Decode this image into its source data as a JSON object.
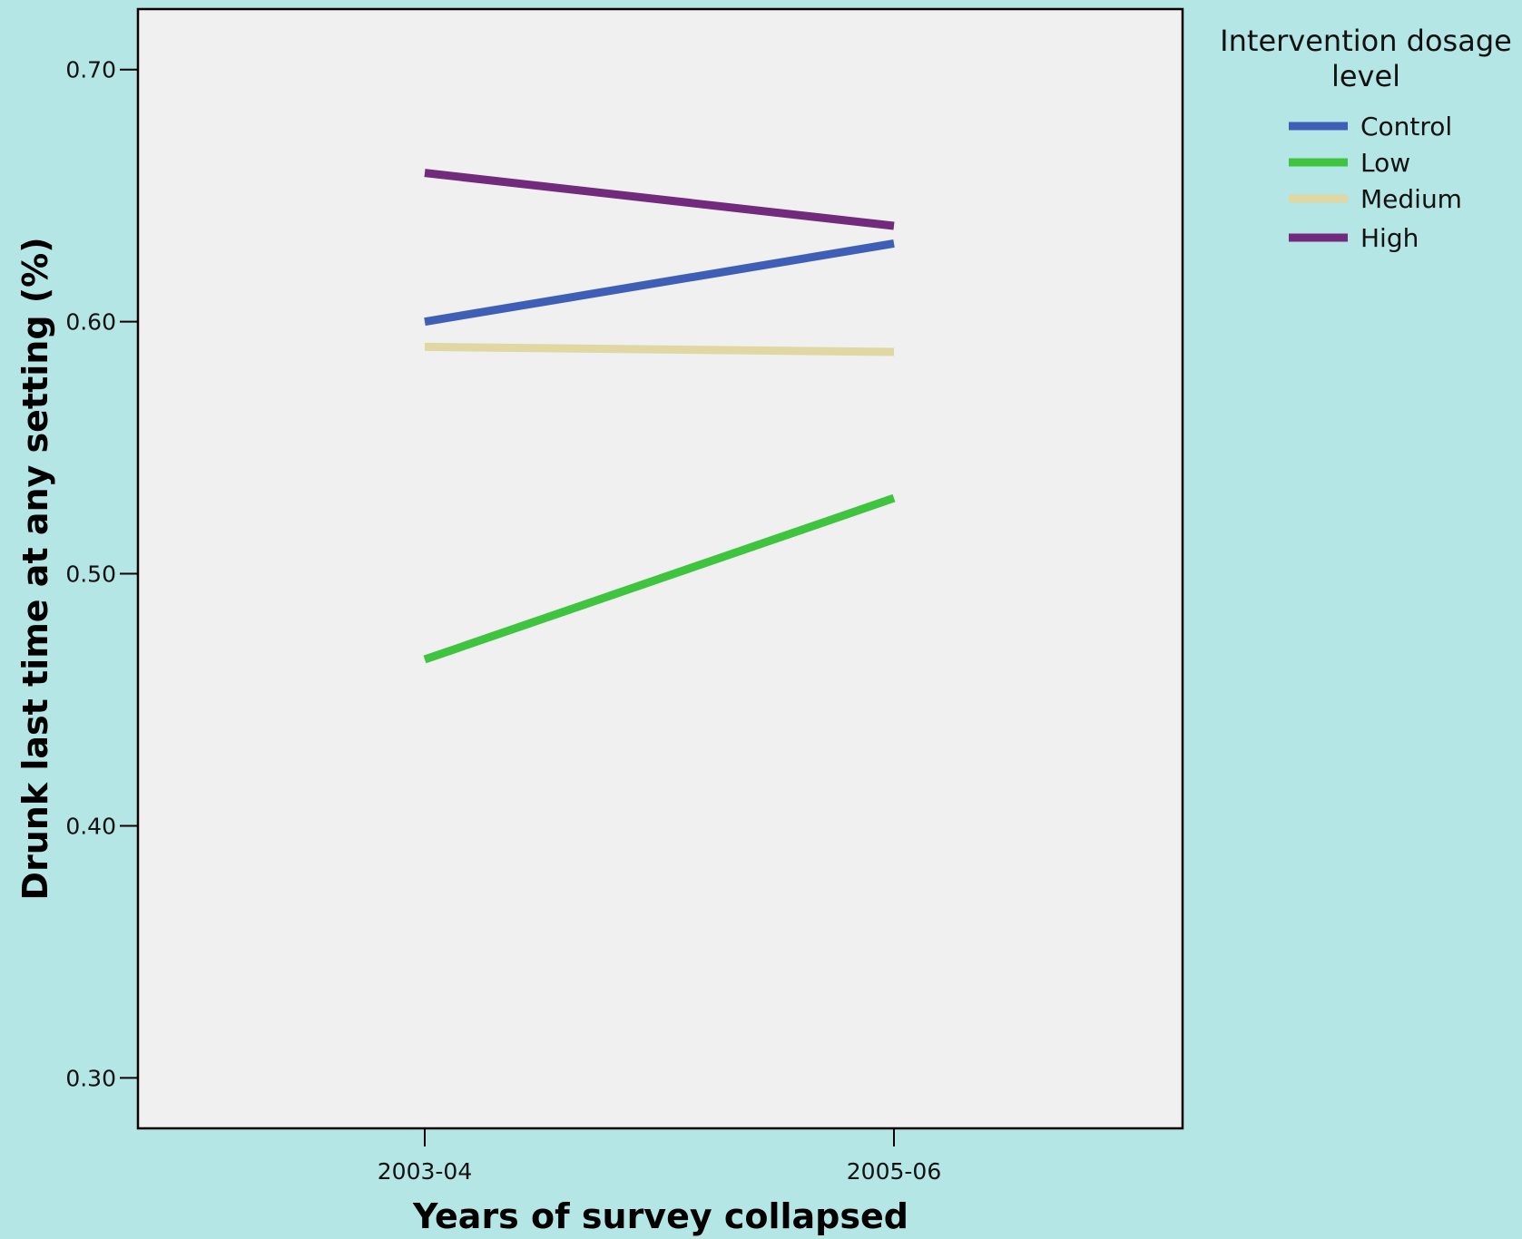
{
  "chart_data": {
    "type": "line",
    "xlabel": "Years of survey collapsed",
    "ylabel": "Drunk last time at any setting (%)",
    "categories": [
      "2003-04",
      "2005-06"
    ],
    "ylim": [
      0.28,
      0.724
    ],
    "yticks": [
      0.3,
      0.4,
      0.5,
      0.6,
      0.7
    ],
    "ytick_labels": [
      "0.30",
      "0.40",
      "0.50",
      "0.60",
      "0.70"
    ],
    "grid": false,
    "legend": {
      "title": "Intervention dosage level",
      "title_lines": [
        "Intervention dosage",
        "level"
      ],
      "placement": "right"
    },
    "series": [
      {
        "name": "Control",
        "color": "#3f5fb7",
        "values": [
          0.6,
          0.631
        ]
      },
      {
        "name": "Low",
        "color": "#3ec43e",
        "values": [
          0.466,
          0.53
        ]
      },
      {
        "name": "Medium",
        "color": "#e0d7a2",
        "values": [
          0.59,
          0.588
        ]
      },
      {
        "name": "High",
        "color": "#722b7c",
        "values": [
          0.659,
          0.638
        ]
      }
    ]
  }
}
